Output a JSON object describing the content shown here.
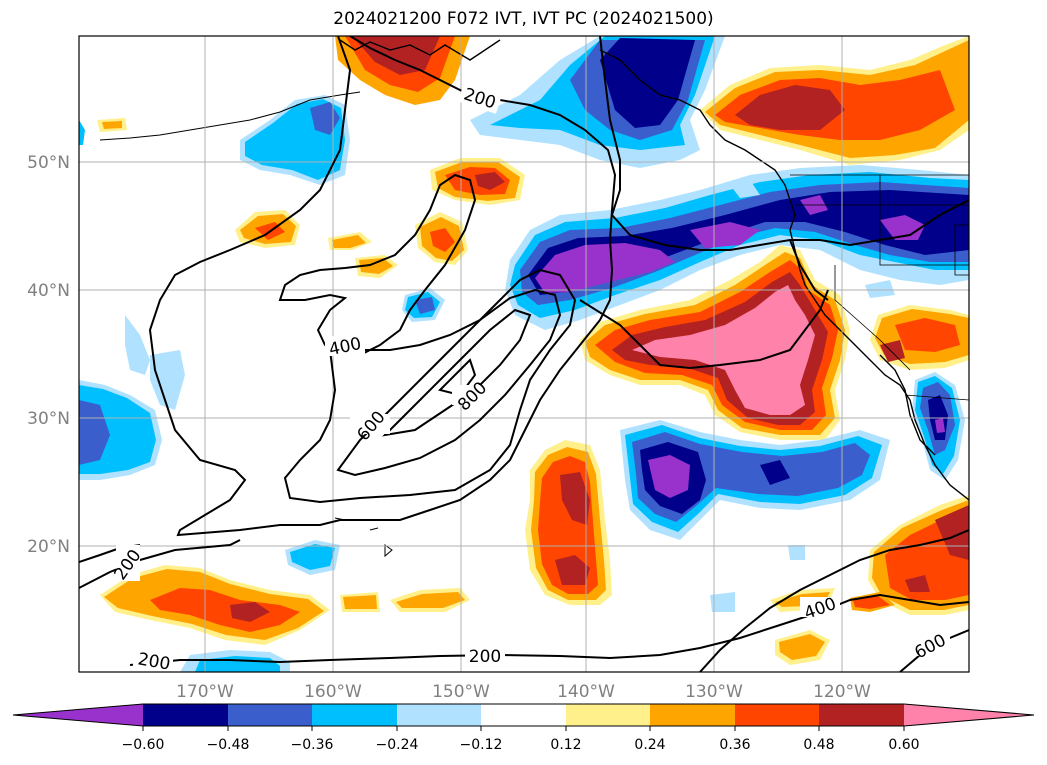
{
  "title": "2024021200 F072 IVT, IVT PC (2024021500)",
  "map": {
    "lat_labels": [
      "50°N",
      "40°N",
      "30°N",
      "20°N"
    ],
    "lon_labels": [
      "170°W",
      "160°W",
      "150°W",
      "140°W",
      "130°W",
      "120°W"
    ],
    "contour_labels": [
      "200",
      "200",
      "200",
      "200",
      "400",
      "400",
      "600",
      "600",
      "800"
    ]
  },
  "colorbar": {
    "ticks": [
      "−0.60",
      "−0.48",
      "−0.36",
      "−0.24",
      "−0.12",
      "0.12",
      "0.24",
      "0.36",
      "0.48",
      "0.60"
    ],
    "colors": [
      "#9932cc",
      "#00008b",
      "#3a5fcd",
      "#00bfff",
      "#b0e2ff",
      "#ffffff",
      "#fff08c",
      "#ffa500",
      "#ff4500",
      "#b22222",
      "#ff82ab"
    ]
  }
}
